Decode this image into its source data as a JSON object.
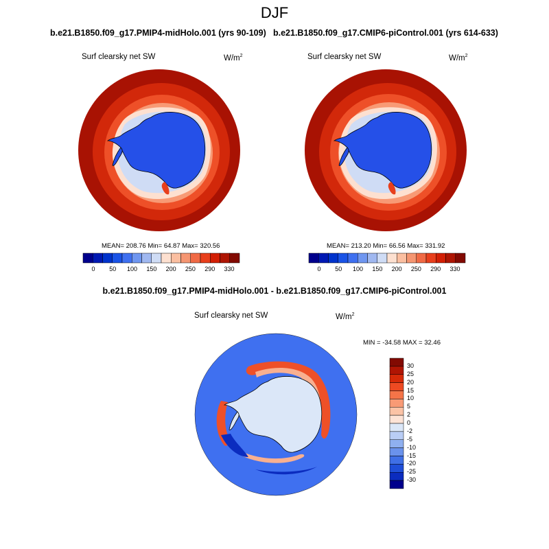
{
  "season": "DJF",
  "units_base": "W/m",
  "units_exp": "2",
  "panels": [
    {
      "case": "b.e21.B1850.f09_g17.PMIP4-midHolo.001 (yrs 90-109)",
      "variable": "Surf clearsky net SW",
      "stats": "MEAN= 208.76  Min=  64.87  Max= 320.56"
    },
    {
      "case": "b.e21.B1850.f09_g17.CMIP6-piControl.001 (yrs 614-633)",
      "variable": "Surf clearsky net SW",
      "stats": "MEAN= 213.20  Min=  66.56  Max= 331.92"
    }
  ],
  "colorbar_top": {
    "colors": [
      "#00008c",
      "#0019b3",
      "#0033cc",
      "#1a53e6",
      "#3f70f0",
      "#6f96f0",
      "#a0b8f0",
      "#cfdcf5",
      "#fde0d0",
      "#fbbfa1",
      "#f59672",
      "#f06a45",
      "#e83f1c",
      "#d21f05",
      "#ae1503",
      "#820a02"
    ],
    "labels": [
      "0",
      "50",
      "100",
      "150",
      "200",
      "250",
      "290",
      "330"
    ]
  },
  "difference": {
    "title": "b.e21.B1850.f09_g17.PMIP4-midHolo.001 - b.e21.B1850.f09_g17.CMIP6-piControl.001",
    "variable": "Surf clearsky net SW",
    "stats": "MIN = -34.58 MAX =  32.46",
    "colorbar": {
      "colors": [
        "#820a02",
        "#b01503",
        "#d62a08",
        "#ee4a22",
        "#f57448",
        "#f89a75",
        "#fbc3a6",
        "#fde3d6",
        "#dbe7f8",
        "#b9cdf5",
        "#8fb0f0",
        "#6a92ec",
        "#3f6fe6",
        "#1f4ed8",
        "#0b2cbf",
        "#00008c"
      ],
      "labels": [
        "30",
        "25",
        "20",
        "15",
        "10",
        "5",
        "2",
        "0",
        "-2",
        "-5",
        "-10",
        "-15",
        "-20",
        "-25",
        "-30"
      ]
    }
  },
  "map_colors": {
    "ocean_far": "#a81203",
    "ocean_outer": "#d2280a",
    "ocean_mid": "#ee5028",
    "ocean_near": "#f89a75",
    "sea_ice": "#fde0d0",
    "ice_edge": "#cfdcf5",
    "continent": "#2550e8",
    "diff_bg": "#3f70f0",
    "diff_land": "#dbe7f8",
    "diff_pos": "#ee5028",
    "diff_pos_light": "#f8b090",
    "diff_neg": "#0b2cbf"
  }
}
